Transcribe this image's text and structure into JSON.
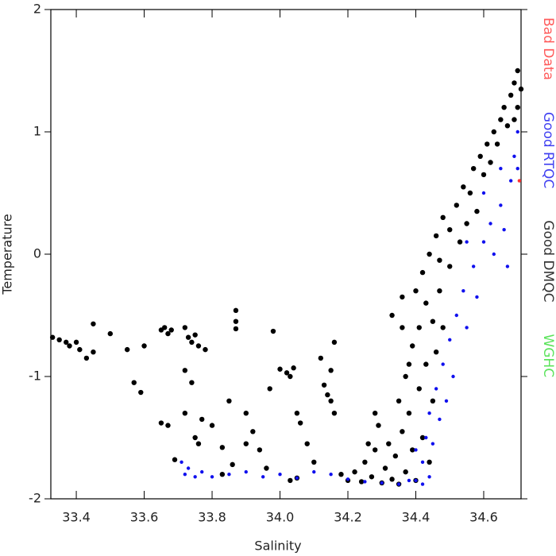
{
  "chart_data": {
    "type": "scatter",
    "xlabel": "Salinity",
    "ylabel": "Temperature",
    "xlim": [
      33.325,
      34.71
    ],
    "ylim": [
      -2,
      2
    ],
    "xticks": [
      33.4,
      33.6,
      33.8,
      {
        "value": 34,
        "label": "34.0"
      },
      34.2,
      34.4,
      34.6
    ],
    "yticks": [
      -2,
      -1,
      0,
      1,
      2
    ],
    "series": [
      {
        "name": "Bad Data",
        "color": "#ff3333",
        "x": [
          34.705
        ],
        "values": [
          0.6
        ]
      },
      {
        "name": "Good RTQC",
        "color": "#1010ee",
        "x": [
          33.71,
          33.72,
          33.73,
          33.75,
          33.77,
          33.8,
          33.85,
          33.9,
          33.95,
          34.0,
          34.05,
          34.1,
          34.15,
          34.2,
          34.25,
          34.3,
          34.35,
          34.38,
          34.4,
          34.42,
          34.43,
          34.44,
          34.45,
          34.46,
          34.47,
          34.48,
          34.49,
          34.5,
          34.51,
          34.52,
          34.54,
          34.55,
          34.57,
          34.58,
          34.6,
          34.62,
          34.63,
          34.65,
          34.66,
          34.67,
          34.68,
          34.69,
          34.7,
          34.7,
          34.65,
          34.6,
          34.55,
          34.4,
          34.42,
          34.44
        ],
        "values": [
          -1.7,
          -1.8,
          -1.75,
          -1.82,
          -1.78,
          -1.82,
          -1.8,
          -1.78,
          -1.82,
          -1.8,
          -1.83,
          -1.78,
          -1.8,
          -1.84,
          -1.86,
          -1.87,
          -1.88,
          -1.85,
          -1.85,
          -1.7,
          -1.5,
          -1.3,
          -1.55,
          -1.1,
          -1.35,
          -0.9,
          -1.2,
          -0.7,
          -1.0,
          -0.5,
          -0.3,
          -0.6,
          -0.1,
          -0.35,
          0.1,
          0.25,
          0.0,
          0.4,
          0.2,
          -0.1,
          0.6,
          0.8,
          1.0,
          0.7,
          0.7,
          0.5,
          0.1,
          -1.6,
          -1.88,
          -1.82
        ]
      },
      {
        "name": "Good DMQC",
        "color": "#000000",
        "x": [
          33.33,
          33.35,
          33.37,
          33.38,
          33.4,
          33.41,
          33.43,
          33.45,
          33.45,
          33.5,
          33.55,
          33.57,
          33.59,
          33.6,
          33.65,
          33.66,
          33.67,
          33.68,
          33.65,
          33.67,
          33.69,
          33.72,
          33.73,
          33.74,
          33.75,
          33.76,
          33.78,
          33.72,
          33.72,
          33.74,
          33.75,
          33.77,
          33.76,
          33.8,
          33.83,
          33.85,
          33.86,
          33.87,
          33.87,
          33.87,
          33.9,
          33.92,
          33.94,
          33.96,
          33.98,
          33.97,
          34.0,
          34.02,
          34.03,
          34.04,
          34.05,
          34.06,
          34.08,
          34.1,
          34.12,
          34.13,
          34.14,
          34.15,
          34.16,
          34.15,
          34.16,
          34.03,
          34.05,
          33.83,
          33.9,
          34.18,
          34.2,
          34.22,
          34.24,
          34.25,
          34.27,
          34.28,
          34.3,
          34.31,
          34.32,
          34.33,
          34.34,
          34.35,
          34.36,
          34.37,
          34.38,
          34.39,
          34.4,
          34.41,
          34.42,
          34.43,
          34.44,
          34.45,
          34.46,
          34.35,
          34.37,
          34.39,
          34.41,
          34.43,
          34.45,
          34.47,
          34.48,
          34.5,
          34.42,
          34.44,
          34.46,
          34.48,
          34.5,
          34.52,
          34.53,
          34.54,
          34.56,
          34.57,
          34.58,
          34.59,
          34.6,
          34.61,
          34.62,
          34.63,
          34.64,
          34.65,
          34.66,
          34.67,
          34.68,
          34.69,
          34.7,
          34.71,
          34.7,
          34.69,
          34.33,
          34.36,
          34.38,
          34.28,
          34.26,
          34.29,
          34.47,
          34.4,
          34.55,
          34.36
        ],
        "values": [
          -0.68,
          -0.7,
          -0.72,
          -0.75,
          -0.72,
          -0.78,
          -0.85,
          -0.57,
          -0.8,
          -0.65,
          -0.78,
          -1.05,
          -1.13,
          -0.75,
          -0.62,
          -0.6,
          -0.65,
          -0.62,
          -1.38,
          -1.4,
          -1.68,
          -0.6,
          -0.68,
          -0.72,
          -0.66,
          -0.75,
          -0.78,
          -0.95,
          -1.3,
          -1.05,
          -1.5,
          -1.35,
          -1.55,
          -1.4,
          -1.58,
          -1.2,
          -1.72,
          -0.46,
          -0.55,
          -0.61,
          -1.3,
          -1.45,
          -1.6,
          -1.75,
          -0.63,
          -1.1,
          -0.94,
          -0.97,
          -1.0,
          -0.93,
          -1.3,
          -1.38,
          -1.55,
          -1.7,
          -0.85,
          -1.07,
          -1.15,
          -1.2,
          -1.3,
          -0.95,
          -0.72,
          -1.85,
          -1.83,
          -1.8,
          -1.55,
          -1.8,
          -1.85,
          -1.78,
          -1.86,
          -1.7,
          -1.82,
          -1.6,
          -1.87,
          -1.75,
          -1.55,
          -1.84,
          -1.65,
          -1.88,
          -1.45,
          -1.78,
          -1.3,
          -1.6,
          -1.85,
          -1.1,
          -1.5,
          -0.9,
          -1.7,
          -1.2,
          -0.8,
          -1.2,
          -1.0,
          -0.75,
          -0.6,
          -0.4,
          -0.55,
          -0.3,
          -0.6,
          -0.1,
          -0.15,
          0.0,
          0.15,
          0.3,
          0.2,
          0.4,
          0.1,
          0.55,
          0.5,
          0.7,
          0.35,
          0.8,
          0.65,
          0.9,
          0.75,
          1.0,
          0.9,
          1.1,
          1.2,
          1.05,
          1.3,
          1.4,
          1.5,
          1.35,
          1.2,
          1.1,
          -0.5,
          -0.6,
          -0.9,
          -1.3,
          -1.55,
          -1.4,
          -0.05,
          -0.3,
          0.25,
          -0.35
        ]
      },
      {
        "name": "WGHC",
        "color": "#33dd33",
        "x": [],
        "values": []
      }
    ]
  }
}
